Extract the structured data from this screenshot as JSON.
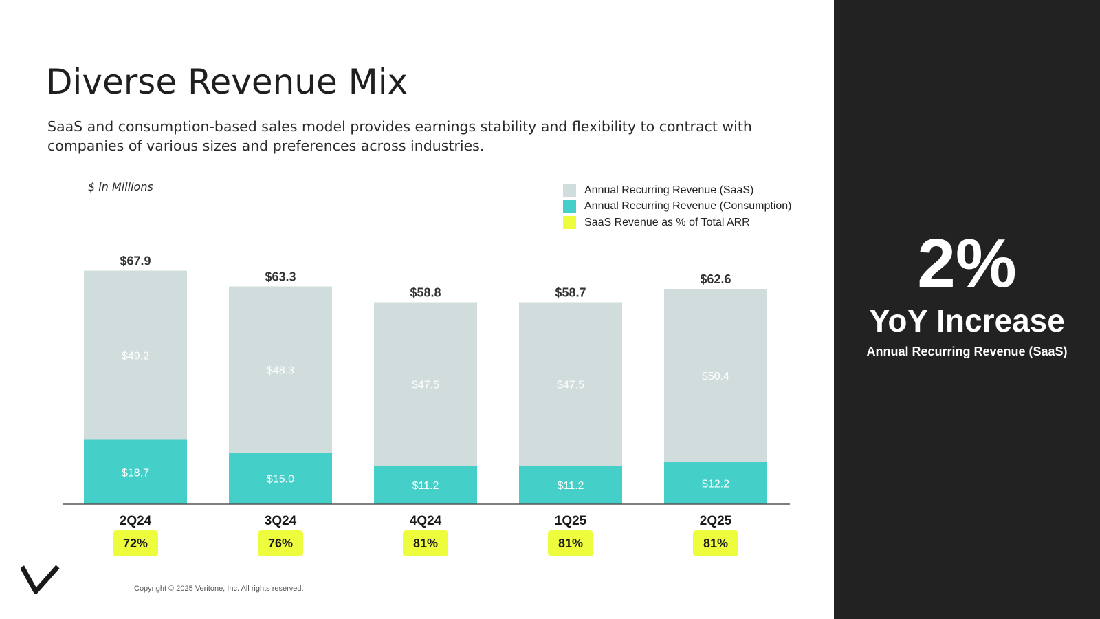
{
  "slide": {
    "title": "Diverse Revenue Mix",
    "subtitle": "SaaS and consumption-based sales model provides earnings stability and flexibility to contract with companies of various sizes and preferences across industries.",
    "unit_label": "$ in Millions",
    "copyright": "Copyright © 2025 Veritone, Inc. All rights reserved."
  },
  "legend": [
    {
      "label": "Annual Recurring Revenue (SaaS)",
      "color": "#d1dddc"
    },
    {
      "label": "Annual Recurring Revenue (Consumption)",
      "color": "#44d0c8"
    },
    {
      "label": "SaaS Revenue as % of Total ARR",
      "color": "#eefc3e"
    }
  ],
  "kpi": {
    "value": "2%",
    "label": "YoY Increase",
    "sublabel": "Annual Recurring Revenue (SaaS)"
  },
  "colors": {
    "saas": "#d1dddc",
    "consumption": "#44d0c8",
    "highlight": "#eefc3e",
    "sidebar": "#222222",
    "axis": "#555555"
  },
  "chart_data": {
    "type": "bar",
    "stacked": true,
    "title": "Diverse Revenue Mix",
    "ylabel": "$ in Millions",
    "categories": [
      "2Q24",
      "3Q24",
      "4Q24",
      "1Q25",
      "2Q25"
    ],
    "series": [
      {
        "name": "Annual Recurring Revenue (Consumption)",
        "values": [
          18.7,
          15.0,
          11.2,
          11.2,
          12.2
        ],
        "labels": [
          "$18.7",
          "$15.0",
          "$11.2",
          "$11.2",
          "$12.2"
        ]
      },
      {
        "name": "Annual Recurring Revenue (SaaS)",
        "values": [
          49.2,
          48.3,
          47.5,
          47.5,
          50.4
        ],
        "labels": [
          "$49.2",
          "$48.3",
          "$47.5",
          "$47.5",
          "$50.4"
        ]
      }
    ],
    "totals": [
      67.9,
      63.3,
      58.8,
      58.7,
      62.6
    ],
    "total_labels": [
      "$67.9",
      "$63.3",
      "$58.8",
      "$58.7",
      "$62.6"
    ],
    "saas_percent": [
      "72%",
      "76%",
      "81%",
      "81%",
      "81%"
    ],
    "ylim": [
      0,
      67.9
    ]
  }
}
